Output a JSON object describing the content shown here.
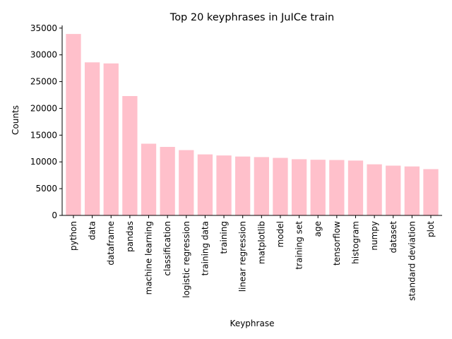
{
  "chart_data": {
    "type": "bar",
    "title": "Top 20 keyphrases in JuICe train",
    "xlabel": "Keyphrase",
    "ylabel": "Counts",
    "ylim": [
      0,
      35500
    ],
    "yticks": [
      0,
      5000,
      10000,
      15000,
      20000,
      25000,
      30000,
      35000
    ],
    "bar_color": "#ffc0cb",
    "grid": false,
    "legend": "none",
    "categories": [
      "python",
      "data",
      "dataframe",
      "pandas",
      "machine learning",
      "classification",
      "logistic regression",
      "training data",
      "training",
      "linear regression",
      "matplotlib",
      "model",
      "training set",
      "age",
      "tensorflow",
      "histogram",
      "numpy",
      "dataset",
      "standard deviation",
      "plot"
    ],
    "values": [
      33900,
      28600,
      28400,
      22300,
      13400,
      12800,
      12200,
      11400,
      11200,
      11000,
      10900,
      10750,
      10500,
      10400,
      10350,
      10250,
      9550,
      9300,
      9150,
      8650
    ]
  }
}
